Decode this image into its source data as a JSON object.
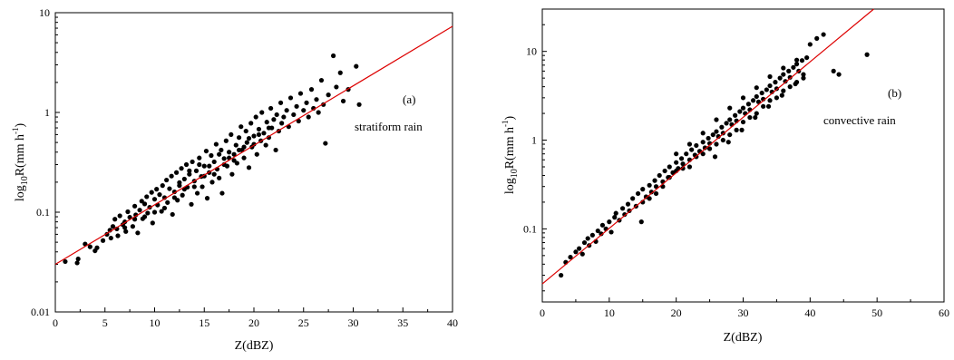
{
  "chart_data": [
    {
      "type": "scatter",
      "panel_label": "(a)",
      "annotation": "stratiform rain",
      "xlabel": "Z(dBZ)",
      "ylabel": {
        "base": "log",
        "sub": "10",
        "main": "R(mm h",
        "sup": "-1",
        "close": ")"
      },
      "xlim": [
        0,
        40
      ],
      "ylim": [
        0.01,
        10
      ],
      "yscale": "log",
      "xticks": [
        0,
        5,
        10,
        15,
        20,
        25,
        30,
        35,
        40
      ],
      "yticks": [
        0.01,
        0.1,
        1,
        10
      ],
      "ytick_labels": [
        "0.01",
        "0.1",
        "1",
        "10"
      ],
      "grid": false,
      "marker_color": "#000000",
      "fit_line": {
        "color": "#dd0000",
        "x": [
          0,
          40
        ],
        "y": [
          0.03,
          7.3
        ]
      },
      "points": [
        [
          1.0,
          0.032
        ],
        [
          2.2,
          0.031
        ],
        [
          2.3,
          0.034
        ],
        [
          3.0,
          0.048
        ],
        [
          3.5,
          0.045
        ],
        [
          4.0,
          0.041
        ],
        [
          4.2,
          0.044
        ],
        [
          4.8,
          0.052
        ],
        [
          5.2,
          0.06
        ],
        [
          5.5,
          0.066
        ],
        [
          5.6,
          0.055
        ],
        [
          5.8,
          0.072
        ],
        [
          6.0,
          0.085
        ],
        [
          6.2,
          0.068
        ],
        [
          6.3,
          0.058
        ],
        [
          6.5,
          0.092
        ],
        [
          6.8,
          0.075
        ],
        [
          7.0,
          0.08
        ],
        [
          7.1,
          0.064
        ],
        [
          7.3,
          0.101
        ],
        [
          7.5,
          0.089
        ],
        [
          7.8,
          0.072
        ],
        [
          8.0,
          0.115
        ],
        [
          8.1,
          0.094
        ],
        [
          8.3,
          0.062
        ],
        [
          8.5,
          0.105
        ],
        [
          8.7,
          0.129
        ],
        [
          8.8,
          0.086
        ],
        [
          9.0,
          0.121
        ],
        [
          9.2,
          0.143
        ],
        [
          9.3,
          0.098
        ],
        [
          9.5,
          0.112
        ],
        [
          9.7,
          0.158
        ],
        [
          9.8,
          0.078
        ],
        [
          10.0,
          0.135
        ],
        [
          10.2,
          0.17
        ],
        [
          10.3,
          0.118
        ],
        [
          10.5,
          0.15
        ],
        [
          10.7,
          0.102
        ],
        [
          10.8,
          0.185
        ],
        [
          11.0,
          0.14
        ],
        [
          11.2,
          0.21
        ],
        [
          11.3,
          0.125
        ],
        [
          11.5,
          0.172
        ],
        [
          11.7,
          0.23
        ],
        [
          11.8,
          0.095
        ],
        [
          12.0,
          0.16
        ],
        [
          12.2,
          0.25
        ],
        [
          12.3,
          0.132
        ],
        [
          12.5,
          0.198
        ],
        [
          12.7,
          0.275
        ],
        [
          12.8,
          0.148
        ],
        [
          13.0,
          0.215
        ],
        [
          13.2,
          0.3
        ],
        [
          13.3,
          0.178
        ],
        [
          13.5,
          0.24
        ],
        [
          13.7,
          0.12
        ],
        [
          13.8,
          0.32
        ],
        [
          14.0,
          0.205
        ],
        [
          14.2,
          0.26
        ],
        [
          14.3,
          0.155
        ],
        [
          14.5,
          0.35
        ],
        [
          14.7,
          0.228
        ],
        [
          14.8,
          0.18
        ],
        [
          15.0,
          0.29
        ],
        [
          15.2,
          0.41
        ],
        [
          15.3,
          0.138
        ],
        [
          15.5,
          0.25
        ],
        [
          15.7,
          0.37
        ],
        [
          15.8,
          0.2
        ],
        [
          16.0,
          0.32
        ],
        [
          16.2,
          0.48
        ],
        [
          16.3,
          0.27
        ],
        [
          16.5,
          0.22
        ],
        [
          16.7,
          0.42
        ],
        [
          16.8,
          0.155
        ],
        [
          17.0,
          0.345
        ],
        [
          17.2,
          0.52
        ],
        [
          17.3,
          0.29
        ],
        [
          17.5,
          0.4
        ],
        [
          17.7,
          0.6
        ],
        [
          17.8,
          0.24
        ],
        [
          18.0,
          0.38
        ],
        [
          18.2,
          0.47
        ],
        [
          18.3,
          0.31
        ],
        [
          18.5,
          0.56
        ],
        [
          18.7,
          0.72
        ],
        [
          18.8,
          0.42
        ],
        [
          19.0,
          0.35
        ],
        [
          19.2,
          0.65
        ],
        [
          19.3,
          0.5
        ],
        [
          19.5,
          0.28
        ],
        [
          19.7,
          0.78
        ],
        [
          19.8,
          0.45
        ],
        [
          20.0,
          0.58
        ],
        [
          20.2,
          0.9
        ],
        [
          20.3,
          0.38
        ],
        [
          20.5,
          0.68
        ],
        [
          20.7,
          0.52
        ],
        [
          20.8,
          1.0
        ],
        [
          21.0,
          0.62
        ],
        [
          21.2,
          0.47
        ],
        [
          21.3,
          0.8
        ],
        [
          21.5,
          0.56
        ],
        [
          21.7,
          1.1
        ],
        [
          21.8,
          0.7
        ],
        [
          22.0,
          0.85
        ],
        [
          22.2,
          0.42
        ],
        [
          22.3,
          0.95
        ],
        [
          22.5,
          0.65
        ],
        [
          22.7,
          1.25
        ],
        [
          22.8,
          0.78
        ],
        [
          23.0,
          0.9
        ],
        [
          23.3,
          1.05
        ],
        [
          23.5,
          0.72
        ],
        [
          23.7,
          1.4
        ],
        [
          24.0,
          0.95
        ],
        [
          24.3,
          1.15
        ],
        [
          24.5,
          0.82
        ],
        [
          24.7,
          1.55
        ],
        [
          25.0,
          1.05
        ],
        [
          25.3,
          1.25
        ],
        [
          25.5,
          0.9
        ],
        [
          25.8,
          1.7
        ],
        [
          26.0,
          1.1
        ],
        [
          26.3,
          1.35
        ],
        [
          26.5,
          1.0
        ],
        [
          26.8,
          2.1
        ],
        [
          27.0,
          1.2
        ],
        [
          27.2,
          0.49
        ],
        [
          27.5,
          1.5
        ],
        [
          28.0,
          3.7
        ],
        [
          28.3,
          1.8
        ],
        [
          28.7,
          2.5
        ],
        [
          29.0,
          1.3
        ],
        [
          29.5,
          1.7
        ],
        [
          30.3,
          2.9
        ],
        [
          30.6,
          1.2
        ],
        [
          11.0,
          0.11
        ],
        [
          12.0,
          0.14
        ],
        [
          13.0,
          0.17
        ],
        [
          14.0,
          0.18
        ],
        [
          15.0,
          0.23
        ],
        [
          16.0,
          0.24
        ],
        [
          17.0,
          0.3
        ],
        [
          18.0,
          0.33
        ],
        [
          19.0,
          0.45
        ],
        [
          20.0,
          0.48
        ],
        [
          9.0,
          0.09
        ],
        [
          10.0,
          0.1
        ],
        [
          8.0,
          0.085
        ],
        [
          7.0,
          0.07
        ],
        [
          12.5,
          0.185
        ],
        [
          13.5,
          0.26
        ],
        [
          14.5,
          0.3
        ],
        [
          15.5,
          0.29
        ],
        [
          16.5,
          0.38
        ],
        [
          17.5,
          0.35
        ],
        [
          18.5,
          0.42
        ],
        [
          19.5,
          0.55
        ],
        [
          20.5,
          0.6
        ],
        [
          21.5,
          0.7
        ]
      ]
    },
    {
      "type": "scatter",
      "panel_label": "(b)",
      "annotation": "convective rain",
      "xlabel": "Z(dBZ)",
      "ylabel": {
        "base": "log",
        "sub": "10",
        "main": "R(mm h",
        "sup": "-1",
        "close": ")"
      },
      "xlim": [
        0,
        60
      ],
      "ylim": [
        0.015,
        30
      ],
      "yscale": "log",
      "xticks": [
        0,
        10,
        20,
        30,
        40,
        50,
        60
      ],
      "yticks": [
        0.1,
        1,
        10
      ],
      "ytick_labels": [
        "0.1",
        "1",
        "10"
      ],
      "grid": false,
      "marker_color": "#000000",
      "fit_line": {
        "color": "#dd0000",
        "x": [
          0,
          49.5
        ],
        "y": [
          0.024,
          30
        ]
      },
      "points": [
        [
          2.8,
          0.03
        ],
        [
          3.5,
          0.042
        ],
        [
          4.2,
          0.048
        ],
        [
          5.0,
          0.055
        ],
        [
          5.5,
          0.06
        ],
        [
          6.0,
          0.052
        ],
        [
          6.3,
          0.07
        ],
        [
          6.8,
          0.078
        ],
        [
          7.0,
          0.065
        ],
        [
          7.5,
          0.085
        ],
        [
          8.0,
          0.072
        ],
        [
          8.3,
          0.095
        ],
        [
          8.8,
          0.088
        ],
        [
          9.0,
          0.11
        ],
        [
          9.5,
          0.1
        ],
        [
          10.0,
          0.12
        ],
        [
          10.3,
          0.092
        ],
        [
          10.8,
          0.135
        ],
        [
          11.0,
          0.15
        ],
        [
          11.5,
          0.125
        ],
        [
          12.0,
          0.17
        ],
        [
          12.3,
          0.145
        ],
        [
          12.8,
          0.19
        ],
        [
          13.0,
          0.16
        ],
        [
          13.5,
          0.22
        ],
        [
          14.0,
          0.18
        ],
        [
          14.3,
          0.25
        ],
        [
          14.8,
          0.12
        ],
        [
          15.0,
          0.28
        ],
        [
          15.5,
          0.23
        ],
        [
          16.0,
          0.31
        ],
        [
          16.3,
          0.26
        ],
        [
          16.8,
          0.35
        ],
        [
          17.0,
          0.3
        ],
        [
          17.5,
          0.4
        ],
        [
          18.0,
          0.34
        ],
        [
          18.3,
          0.45
        ],
        [
          18.8,
          0.38
        ],
        [
          19.0,
          0.5
        ],
        [
          19.5,
          0.43
        ],
        [
          20.0,
          0.56
        ],
        [
          20.3,
          0.48
        ],
        [
          20.8,
          0.62
        ],
        [
          21.0,
          0.54
        ],
        [
          21.5,
          0.7
        ],
        [
          22.0,
          0.6
        ],
        [
          22.3,
          0.78
        ],
        [
          22.8,
          0.68
        ],
        [
          23.0,
          0.87
        ],
        [
          23.5,
          0.75
        ],
        [
          24.0,
          0.95
        ],
        [
          24.3,
          0.82
        ],
        [
          24.8,
          1.05
        ],
        [
          25.0,
          0.92
        ],
        [
          25.5,
          1.15
        ],
        [
          25.8,
          0.65
        ],
        [
          26.0,
          1.25
        ],
        [
          26.3,
          1.1
        ],
        [
          26.8,
          1.4
        ],
        [
          27.0,
          1.2
        ],
        [
          27.5,
          1.55
        ],
        [
          27.8,
          0.95
        ],
        [
          28.0,
          1.7
        ],
        [
          28.3,
          1.5
        ],
        [
          28.8,
          1.9
        ],
        [
          29.0,
          1.65
        ],
        [
          29.5,
          2.1
        ],
        [
          29.8,
          1.3
        ],
        [
          30.0,
          2.3
        ],
        [
          30.3,
          2.0
        ],
        [
          30.8,
          2.55
        ],
        [
          31.0,
          2.2
        ],
        [
          31.5,
          2.8
        ],
        [
          31.8,
          1.8
        ],
        [
          32.0,
          3.1
        ],
        [
          32.3,
          2.7
        ],
        [
          32.8,
          3.4
        ],
        [
          33.0,
          2.9
        ],
        [
          33.5,
          3.7
        ],
        [
          33.8,
          2.4
        ],
        [
          34.0,
          4.1
        ],
        [
          34.3,
          3.5
        ],
        [
          34.8,
          4.5
        ],
        [
          35.0,
          3.8
        ],
        [
          35.5,
          5.0
        ],
        [
          35.8,
          3.2
        ],
        [
          36.0,
          5.5
        ],
        [
          36.3,
          4.6
        ],
        [
          36.8,
          6.0
        ],
        [
          37.0,
          5.1
        ],
        [
          37.5,
          6.6
        ],
        [
          37.8,
          4.3
        ],
        [
          38.0,
          7.2
        ],
        [
          38.3,
          6.0
        ],
        [
          38.8,
          7.9
        ],
        [
          39.0,
          5.5
        ],
        [
          39.5,
          8.5
        ],
        [
          40.0,
          12.0
        ],
        [
          41.0,
          14.0
        ],
        [
          42.0,
          15.5
        ],
        [
          43.5,
          6.0
        ],
        [
          44.3,
          5.5
        ],
        [
          48.5,
          9.2
        ],
        [
          15.0,
          0.2
        ],
        [
          16.0,
          0.22
        ],
        [
          17.0,
          0.25
        ],
        [
          18.0,
          0.3
        ],
        [
          19.0,
          0.38
        ],
        [
          20.0,
          0.45
        ],
        [
          21.0,
          0.48
        ],
        [
          22.0,
          0.5
        ],
        [
          23.0,
          0.65
        ],
        [
          24.0,
          0.7
        ],
        [
          25.0,
          0.8
        ],
        [
          26.0,
          0.9
        ],
        [
          27.0,
          1.0
        ],
        [
          28.0,
          1.15
        ],
        [
          29.0,
          1.3
        ],
        [
          30.0,
          1.6
        ],
        [
          31.0,
          1.8
        ],
        [
          32.0,
          2.0
        ],
        [
          33.0,
          2.4
        ],
        [
          34.0,
          2.8
        ],
        [
          35.0,
          3.0
        ],
        [
          36.0,
          3.6
        ],
        [
          37.0,
          4.0
        ],
        [
          38.0,
          4.5
        ],
        [
          39.0,
          5.0
        ],
        [
          20.0,
          0.7
        ],
        [
          22.0,
          0.9
        ],
        [
          24.0,
          1.2
        ],
        [
          26.0,
          1.7
        ],
        [
          28.0,
          2.3
        ],
        [
          30.0,
          3.0
        ],
        [
          32.0,
          3.9
        ],
        [
          34.0,
          5.2
        ],
        [
          36.0,
          6.5
        ],
        [
          38.0,
          8.0
        ]
      ]
    }
  ]
}
